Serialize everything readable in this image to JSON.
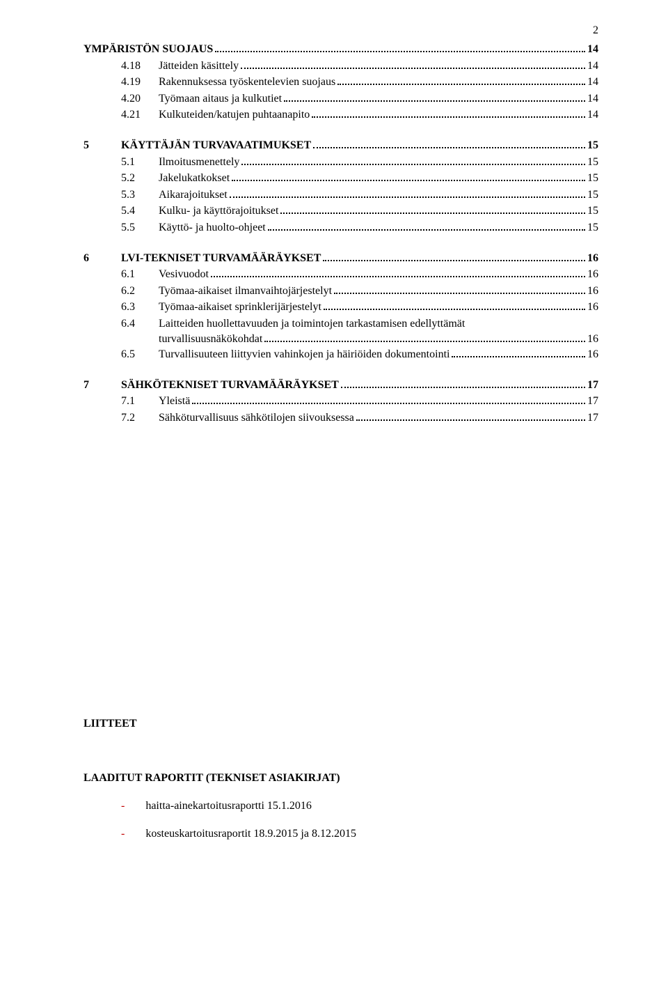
{
  "page_number": "2",
  "colors": {
    "text": "#000000",
    "background": "#ffffff",
    "bullet_red": "#c00000"
  },
  "toc": {
    "continued_heading": {
      "title_fragment": "YMPÄRISTÖN SUOJAUS",
      "page": "14"
    },
    "sub_group_4": [
      {
        "num": "4.18",
        "title": "Jätteiden käsittely",
        "page": "14"
      },
      {
        "num": "4.19",
        "title": "Rakennuksessa työskentelevien suojaus",
        "page": "14"
      },
      {
        "num": "4.20",
        "title": "Työmaan aitaus ja kulkutiet",
        "page": "14"
      },
      {
        "num": "4.21",
        "title": "Kulkuteiden/katujen puhtaanapito",
        "page": "14"
      }
    ],
    "section5": {
      "num": "5",
      "title": "KÄYTTÄJÄN TURVAVAATIMUKSET",
      "page": "15",
      "items": [
        {
          "num": "5.1",
          "title": "Ilmoitusmenettely",
          "page": "15"
        },
        {
          "num": "5.2",
          "title": "Jakelukatkokset",
          "page": "15"
        },
        {
          "num": "5.3",
          "title": "Aikarajoitukset",
          "page": "15"
        },
        {
          "num": "5.4",
          "title": "Kulku- ja käyttörajoitukset",
          "page": "15"
        },
        {
          "num": "5.5",
          "title": "Käyttö- ja huolto-ohjeet",
          "page": "15"
        }
      ]
    },
    "section6": {
      "num": "6",
      "title": "LVI-TEKNISET TURVAMÄÄRÄYKSET",
      "page": "16",
      "items": [
        {
          "num": "6.1",
          "title": "Vesivuodot",
          "page": "16"
        },
        {
          "num": "6.2",
          "title": "Työmaa-aikaiset ilmanvaihtojärjestelyt",
          "page": "16"
        },
        {
          "num": "6.3",
          "title": "Työmaa-aikaiset sprinklerijärjestelyt",
          "page": "16"
        },
        {
          "num": "6.4",
          "title_line1": "Laitteiden huollettavuuden ja toimintojen tarkastamisen edellyttämät",
          "title_line2": "turvallisuusnäkökohdat",
          "page": "16"
        },
        {
          "num": "6.5",
          "title": "Turvallisuuteen liittyvien vahinkojen ja häiriöiden dokumentointi",
          "page": "16"
        }
      ]
    },
    "section7": {
      "num": "7",
      "title": "SÄHKÖTEKNISET TURVAMÄÄRÄYKSET",
      "page": "17",
      "items": [
        {
          "num": "7.1",
          "title": "Yleistä",
          "page": "17"
        },
        {
          "num": "7.2",
          "title": "Sähköturvallisuus sähkötilojen siivouksessa",
          "page": "17"
        }
      ]
    }
  },
  "attachments": {
    "heading": "LIITTEET",
    "reports_heading": "LAADITUT RAPORTIT (TEKNISET ASIAKIRJAT)",
    "bullets": [
      "haitta-ainekartoitusraportti 15.1.2016",
      "kosteuskartoitusraportit 18.9.2015 ja 8.12.2015"
    ]
  }
}
